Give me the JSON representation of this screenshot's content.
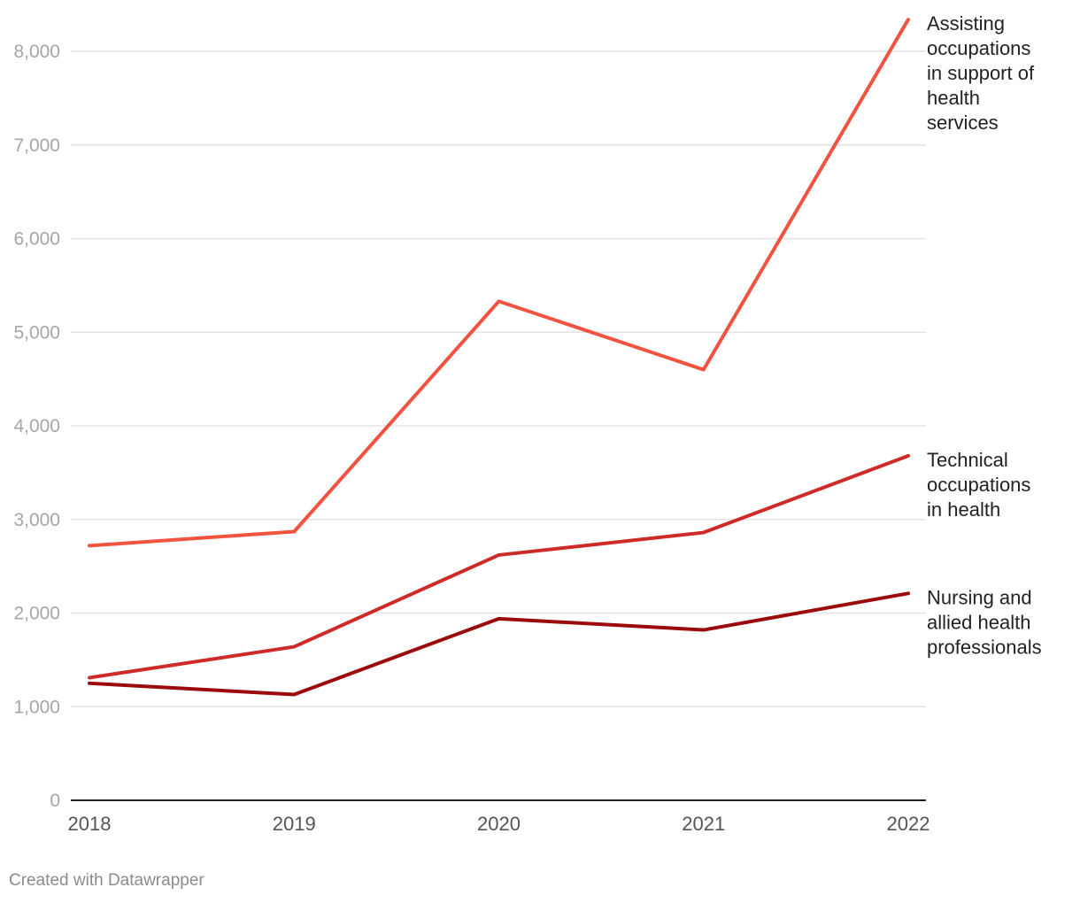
{
  "chart_data": {
    "type": "line",
    "title": "",
    "xlabel": "",
    "ylabel": "",
    "x": [
      "2018",
      "2019",
      "2020",
      "2021",
      "2022"
    ],
    "ylim": [
      0,
      8000
    ],
    "yticks": [
      0,
      1000,
      2000,
      3000,
      4000,
      5000,
      6000,
      7000,
      8000
    ],
    "ytick_labels": [
      "0",
      "1,000",
      "2,000",
      "3,000",
      "4,000",
      "5,000",
      "6,000",
      "7,000",
      "8,000"
    ],
    "grid": true,
    "legend": "direct labels at right end of lines",
    "series": [
      {
        "name": "Assisting occupations in support of health services",
        "label_lines": [
          "Assisting",
          "occupations",
          "in support of",
          "health",
          "services"
        ],
        "color": "#f05440",
        "values": [
          2720,
          2870,
          5330,
          4600,
          8340
        ]
      },
      {
        "name": "Technical occupations in health",
        "label_lines": [
          "Technical",
          "occupations",
          "in health"
        ],
        "color": "#cd2a28",
        "values": [
          1310,
          1640,
          2620,
          2860,
          3680
        ]
      },
      {
        "name": "Nursing and allied health professionals",
        "label_lines": [
          "Nursing and",
          "allied health",
          "professionals"
        ],
        "color": "#9b0b0b",
        "values": [
          1250,
          1130,
          1940,
          1820,
          2210
        ]
      }
    ]
  },
  "footer": {
    "credit": "Created with Datawrapper"
  }
}
